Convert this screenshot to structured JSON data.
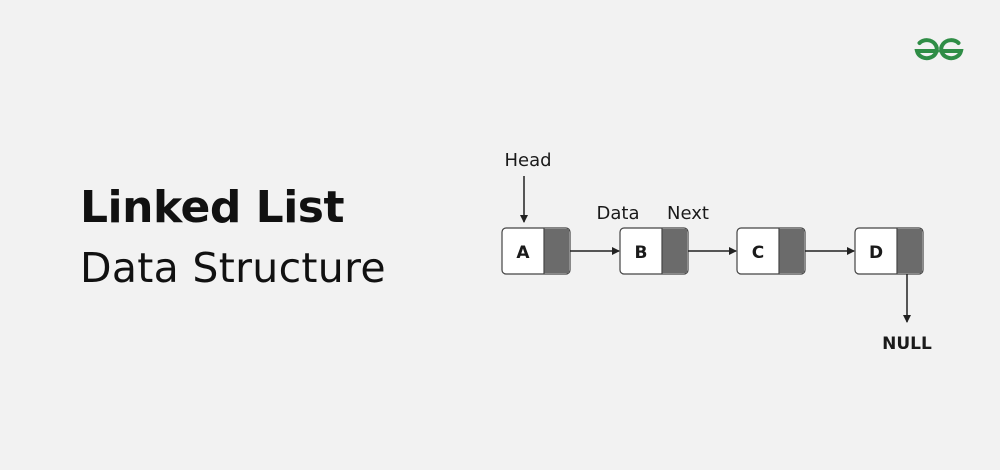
{
  "title": {
    "line1": "Linked List",
    "line2": "Data Structure"
  },
  "logo": {
    "name": "gfg-logo-icon",
    "color": "#2f8d46"
  },
  "diagram": {
    "head_label": "Head",
    "data_label": "Data",
    "next_label": "Next",
    "null_label": "NULL",
    "nodes": [
      "A",
      "B",
      "C",
      "D"
    ],
    "colors": {
      "node_fill": "#ffffff",
      "pointer_fill": "#6b6b6b",
      "stroke": "#444444",
      "arrow": "#222222"
    }
  }
}
